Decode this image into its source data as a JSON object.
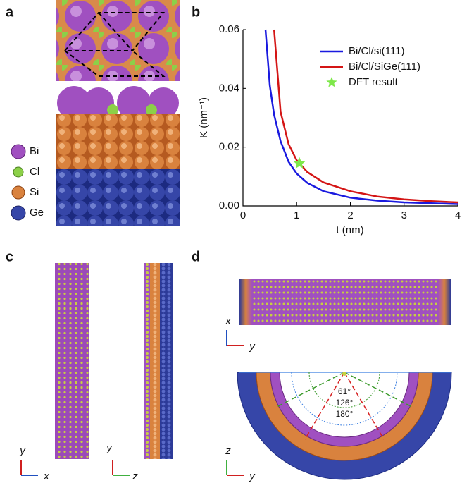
{
  "panels": {
    "a": {
      "label": "a",
      "legend": [
        "Bi",
        "Cl",
        "Si",
        "Ge"
      ]
    },
    "c": {
      "label": "c",
      "axes_left": [
        "y",
        "x"
      ],
      "axes_right": [
        "y",
        "z"
      ]
    },
    "d": {
      "label": "d",
      "axes_top": [
        "x",
        "y"
      ],
      "axes_bottom": [
        "z",
        "y"
      ],
      "angles": [
        {
          "text": "61°",
          "color": "#d62020"
        },
        {
          "text": "126°",
          "color": "#3a9a2a"
        },
        {
          "text": "180°",
          "color": "#3b7fe0"
        }
      ]
    }
  },
  "chart_data": {
    "type": "line",
    "panel_label": "b",
    "xlabel": "t (nm)",
    "ylabel": "K (nm⁻¹)",
    "xlim": [
      0,
      4
    ],
    "ylim": [
      0,
      0.06
    ],
    "xticks": [
      0,
      1,
      2,
      3,
      4
    ],
    "yticks": [
      {
        "value": 0,
        "label": "0.00"
      },
      0.02,
      0.04,
      0.06
    ],
    "legend": "upper right",
    "series": [
      {
        "name": "Bi/Cl/si(111)",
        "color": "#1a1adf",
        "kind": "line",
        "x": [
          0.42,
          0.5,
          0.58,
          0.7,
          0.85,
          1.0,
          1.2,
          1.5,
          2.0,
          2.5,
          3.0,
          3.5,
          4.0
        ],
        "values": [
          0.06,
          0.041,
          0.031,
          0.022,
          0.015,
          0.011,
          0.0078,
          0.005,
          0.0028,
          0.0018,
          0.0012,
          0.0009,
          0.0006
        ]
      },
      {
        "name": "Bi/Cl/SiGe(111)",
        "color": "#d41515",
        "kind": "line",
        "x": [
          0.42,
          0.5,
          0.58,
          0.7,
          0.85,
          1.0,
          1.2,
          1.5,
          2.0,
          2.5,
          3.0,
          3.5,
          4.0
        ],
        "values": [
          null,
          null,
          0.06,
          0.032,
          0.021,
          0.0155,
          0.0115,
          0.008,
          0.005,
          0.0032,
          0.0022,
          0.0016,
          0.0012
        ]
      },
      {
        "name": "DFT result",
        "color": "#7ee84a",
        "kind": "star",
        "x": [
          1.05
        ],
        "values": [
          0.0145
        ]
      }
    ]
  }
}
